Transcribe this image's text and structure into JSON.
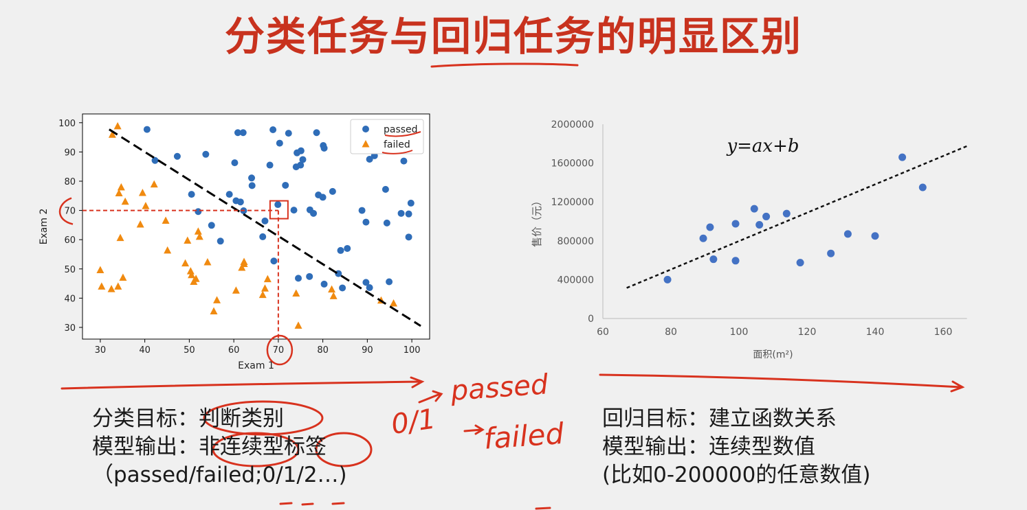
{
  "title": "分类任务与回归任务的明显区别",
  "chart_data": [
    {
      "type": "scatter",
      "title": "",
      "xlabel": "Exam 1",
      "ylabel": "Exam 2",
      "xlim": [
        26,
        104
      ],
      "ylim": [
        26,
        103
      ],
      "xticks": [
        30,
        40,
        50,
        60,
        70,
        80,
        90,
        100
      ],
      "yticks": [
        30,
        40,
        50,
        60,
        70,
        80,
        90,
        100
      ],
      "legend_position": "top-right",
      "grid": false,
      "series": [
        {
          "name": "passed",
          "marker": "circle",
          "color": "#2f6db8",
          "points": [
            [
              40.5,
              97.7
            ],
            [
              42.3,
              87.1
            ],
            [
              47.3,
              88.5
            ],
            [
              50.5,
              75.5
            ],
            [
              52,
              69.6
            ],
            [
              53.7,
              89.2
            ],
            [
              55,
              64.9
            ],
            [
              57,
              59.5
            ],
            [
              59,
              75.5
            ],
            [
              60.2,
              86.3
            ],
            [
              60.5,
              73.3
            ],
            [
              60.9,
              96.6
            ],
            [
              61.5,
              72.9
            ],
            [
              62.1,
              96.6
            ],
            [
              62.2,
              69.9
            ],
            [
              64,
              81.1
            ],
            [
              64.1,
              78.5
            ],
            [
              66.5,
              61
            ],
            [
              67,
              66.4
            ],
            [
              68.1,
              85.5
            ],
            [
              68.8,
              97.6
            ],
            [
              69,
              52.7
            ],
            [
              69.9,
              72
            ],
            [
              70.3,
              93
            ],
            [
              71.6,
              78.6
            ],
            [
              72.3,
              96.4
            ],
            [
              73.5,
              70.1
            ],
            [
              74,
              84.9
            ],
            [
              74.2,
              89.7
            ],
            [
              74.5,
              46.8
            ],
            [
              75,
              85.5
            ],
            [
              75.1,
              90.4
            ],
            [
              75.5,
              87.4
            ],
            [
              77,
              47.4
            ],
            [
              77.1,
              70.2
            ],
            [
              77.9,
              69
            ],
            [
              78.6,
              96.6
            ],
            [
              79,
              75.3
            ],
            [
              80,
              74.5
            ],
            [
              80.1,
              92.2
            ],
            [
              80.3,
              91.3
            ],
            [
              80.3,
              44.8
            ],
            [
              82.2,
              76.5
            ],
            [
              83.5,
              48.4
            ],
            [
              84,
              56.3
            ],
            [
              84.4,
              43.5
            ],
            [
              85.5,
              57
            ],
            [
              88.8,
              70
            ],
            [
              89.7,
              45.4
            ],
            [
              89.7,
              66
            ],
            [
              90.5,
              87.5
            ],
            [
              90.5,
              43.6
            ],
            [
              91.6,
              88.7
            ],
            [
              94.1,
              77.2
            ],
            [
              94.4,
              65.7
            ],
            [
              94.9,
              45.6
            ],
            [
              97.6,
              69
            ],
            [
              98.2,
              86.9
            ],
            [
              99.3,
              68.8
            ],
            [
              99.3,
              60.9
            ],
            [
              99.8,
              72.5
            ]
          ]
        },
        {
          "name": "failed",
          "marker": "triangle",
          "color": "#f08a10",
          "points": [
            [
              30,
              49.6
            ],
            [
              30.3,
              44
            ],
            [
              32.5,
              43.1
            ],
            [
              32.7,
              95.9
            ],
            [
              33.9,
              98.8
            ],
            [
              34,
              44
            ],
            [
              34.2,
              75.9
            ],
            [
              34.5,
              60.6
            ],
            [
              34.7,
              77.9
            ],
            [
              35.1,
              47
            ],
            [
              35.6,
              73
            ],
            [
              39,
              65.2
            ],
            [
              39.5,
              76
            ],
            [
              40.2,
              71.5
            ],
            [
              42.1,
              78.9
            ],
            [
              44.7,
              66.5
            ],
            [
              45.1,
              56.3
            ],
            [
              49.1,
              51.9
            ],
            [
              49.6,
              59.7
            ],
            [
              50.3,
              49.2
            ],
            [
              50.5,
              47.9
            ],
            [
              51,
              45.6
            ],
            [
              51.5,
              46.6
            ],
            [
              52,
              62.8
            ],
            [
              52.3,
              61
            ],
            [
              54.1,
              52.3
            ],
            [
              55.5,
              35.5
            ],
            [
              56.2,
              39.3
            ],
            [
              60.5,
              42.6
            ],
            [
              61.8,
              50.4
            ],
            [
              62.3,
              51.7
            ],
            [
              62.3,
              52.4
            ],
            [
              66.5,
              41.1
            ],
            [
              67,
              43.3
            ],
            [
              67.6,
              46.5
            ],
            [
              74,
              41.6
            ],
            [
              74.5,
              30.6
            ],
            [
              82,
              43
            ],
            [
              82.4,
              40.7
            ],
            [
              93.1,
              39.2
            ],
            [
              95.9,
              38.2
            ]
          ]
        }
      ],
      "decision_boundary": [
        [
          32,
          97.7
        ],
        [
          102,
          30.5
        ]
      ]
    },
    {
      "type": "scatter",
      "title": "",
      "equation": "y=ax+b",
      "xlabel": "面积(m²)",
      "ylabel": "售价（元）",
      "xlim": [
        60,
        167
      ],
      "ylim": [
        0,
        2000000
      ],
      "xticks": [
        60,
        80,
        100,
        120,
        140,
        160
      ],
      "yticks": [
        0,
        400000,
        800000,
        1200000,
        1600000,
        2000000
      ],
      "grid": false,
      "series": [
        {
          "name": "",
          "marker": "circle",
          "color": "#4472c4",
          "points": [
            [
              79,
              400000
            ],
            [
              89.5,
              825000
            ],
            [
              91.5,
              940000
            ],
            [
              92.5,
              610000
            ],
            [
              99,
              595000
            ],
            [
              99,
              975000
            ],
            [
              104.5,
              1130000
            ],
            [
              106,
              965000
            ],
            [
              108,
              1050000
            ],
            [
              114,
              1080000
            ],
            [
              118,
              575000
            ],
            [
              127,
              670000
            ],
            [
              132,
              870000
            ],
            [
              140,
              850000
            ],
            [
              148,
              1660000
            ],
            [
              154,
              1350000
            ]
          ]
        }
      ],
      "fit_line": [
        [
          67,
          315000
        ],
        [
          167,
          1775000
        ]
      ]
    }
  ],
  "left_text": {
    "line1": "分类目标：判断类别",
    "line2": "模型输出：非连续型标签",
    "line3": "（passed/failed;0/1/2…)"
  },
  "right_text": {
    "line1": "回归目标：建立函数关系",
    "line2": "模型输出：连续型数值",
    "line3": "(比如0-200000的任意数值)"
  },
  "annotations": {
    "handwritten_passed": "passed",
    "handwritten_failed": "failed",
    "handwritten_zero_one": "0/1"
  }
}
